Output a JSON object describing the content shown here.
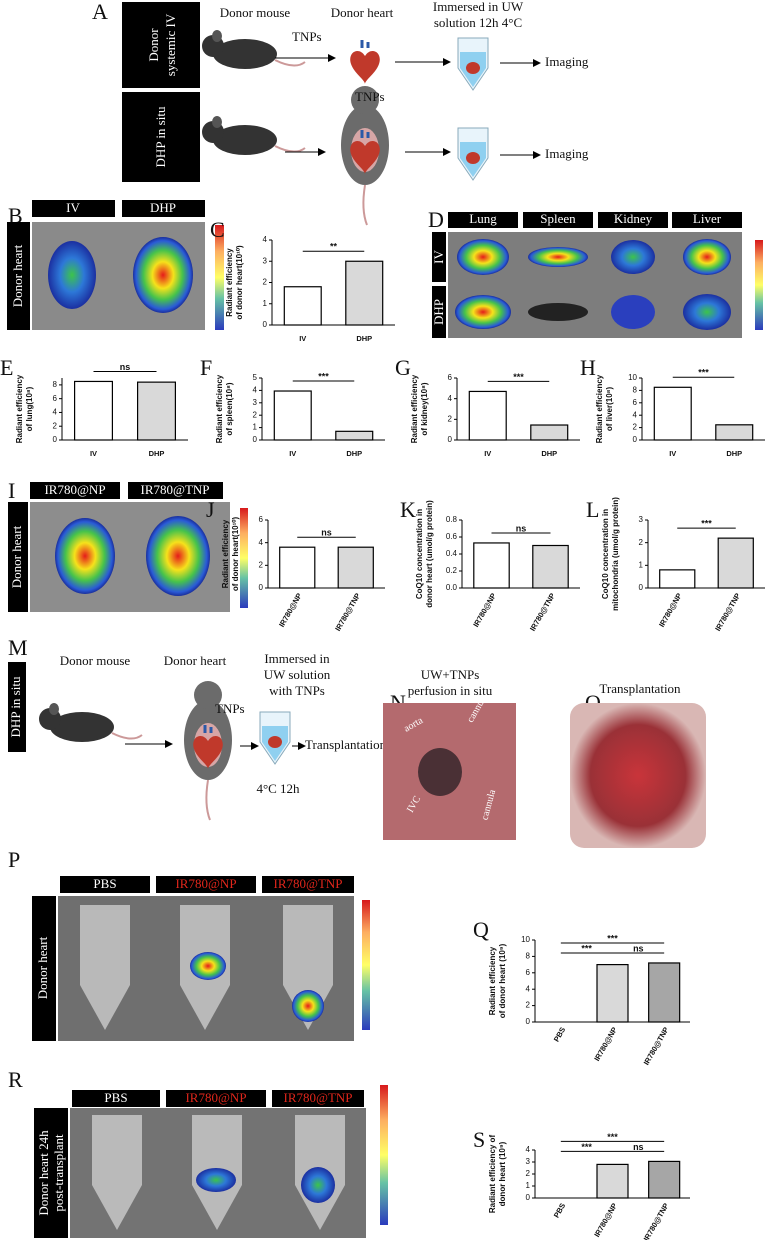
{
  "panel_a": {
    "label": "A",
    "rows": [
      [
        "Donor",
        "systemic IV"
      ],
      "DHP in situ"
    ],
    "donor_mouse": "Donor mouse",
    "donor_heart": "Donor heart",
    "immersed": [
      "Immersed in UW",
      "solution 12h 4°C"
    ],
    "tnps": "TNPs",
    "imaging": "Imaging"
  },
  "panel_b": {
    "label": "B",
    "groups": [
      "IV",
      "DHP"
    ],
    "side": "Donor heart"
  },
  "panel_d": {
    "label": "D",
    "organs": [
      "Lung",
      "Spleen",
      "Kidney",
      "Liver"
    ],
    "rows": [
      "IV",
      "DHP"
    ]
  },
  "panel_i": {
    "label": "I",
    "groups": [
      "IR780@NP",
      "IR780@TNP"
    ],
    "side": "Donor heart"
  },
  "panel_m": {
    "label": "M",
    "side": "DHP in situ",
    "donor_mouse": "Donor mouse",
    "donor_heart": "Donor heart",
    "immersed": [
      "Immersed in",
      "UW solution",
      "with TNPs"
    ],
    "tnps": "TNPs",
    "condition": "4°C  12h",
    "transplantation": "Transplantation"
  },
  "panel_n": {
    "label": "N",
    "title": [
      "UW+TNPs",
      "perfusion in situ"
    ],
    "annotations": [
      "aorta",
      "cannula",
      "IVC",
      "cannula"
    ]
  },
  "panel_o": {
    "label": "O",
    "title": "Transplantation"
  },
  "panel_p": {
    "label": "P",
    "groups": [
      "PBS",
      "IR780@NP",
      "IR780@TNP"
    ],
    "side": "Donor heart"
  },
  "panel_r": {
    "label": "R",
    "groups": [
      "PBS",
      "IR780@NP",
      "IR780@TNP"
    ],
    "side": [
      "Donor heart 24h",
      "post-transplant"
    ]
  },
  "chart_data": [
    {
      "type": "bar",
      "label": "C",
      "ylabel": [
        "Radiant efficiency",
        "of donor heart(10¹⁰)"
      ],
      "categories": [
        "IV",
        "DHP"
      ],
      "values": [
        1.8,
        3.0
      ],
      "colors": [
        "#ffffff",
        "#d9d9d9"
      ],
      "ylim": [
        0,
        4
      ],
      "yticks": [
        0,
        1,
        2,
        3,
        4
      ],
      "annotations": [
        "**"
      ]
    },
    {
      "type": "bar",
      "label": "E",
      "ylabel": [
        "Radiant efficiency",
        "of lung(10⁸)"
      ],
      "categories": [
        "IV",
        "DHP"
      ],
      "values": [
        8.5,
        8.4
      ],
      "colors": [
        "#ffffff",
        "#d9d9d9"
      ],
      "ylim": [
        0,
        9
      ],
      "yticks": [
        0,
        2,
        4,
        6,
        8
      ],
      "annotations": [
        "ns"
      ]
    },
    {
      "type": "bar",
      "label": "F",
      "ylabel": [
        "Radiant efficiency",
        "of spleen(10⁸)"
      ],
      "categories": [
        "IV",
        "DHP"
      ],
      "values": [
        3.95,
        0.7
      ],
      "colors": [
        "#ffffff",
        "#d9d9d9"
      ],
      "ylim": [
        0,
        5
      ],
      "yticks": [
        0,
        1,
        2,
        3,
        4,
        5
      ],
      "annotations": [
        "***"
      ]
    },
    {
      "type": "bar",
      "label": "G",
      "ylabel": [
        "Radiant efficiency",
        "of kidney(10⁸)"
      ],
      "categories": [
        "IV",
        "DHP"
      ],
      "values": [
        4.7,
        1.45
      ],
      "colors": [
        "#ffffff",
        "#d9d9d9"
      ],
      "ylim": [
        0,
        6
      ],
      "yticks": [
        0,
        2,
        4,
        6
      ],
      "annotations": [
        "***"
      ]
    },
    {
      "type": "bar",
      "label": "H",
      "ylabel": [
        "Radiant efficiency",
        "of liver(10⁸)"
      ],
      "categories": [
        "IV",
        "DHP"
      ],
      "values": [
        8.5,
        2.45
      ],
      "colors": [
        "#ffffff",
        "#d9d9d9"
      ],
      "ylim": [
        0,
        10
      ],
      "yticks": [
        0,
        2,
        4,
        6,
        8,
        10
      ],
      "annotations": [
        "***"
      ]
    },
    {
      "type": "bar",
      "label": "J",
      "ylabel": [
        "Radiant efficiency",
        "of donor heart(10¹⁰)"
      ],
      "categories": [
        "IR780@NP",
        "IR780@TNP"
      ],
      "values": [
        3.6,
        3.6
      ],
      "colors": [
        "#ffffff",
        "#d9d9d9"
      ],
      "ylim": [
        0,
        6
      ],
      "yticks": [
        0,
        2,
        4,
        6
      ],
      "annotations": [
        "ns"
      ]
    },
    {
      "type": "bar",
      "label": "K",
      "ylabel": [
        "CoQ10 concentration in",
        "donor heart (umol/g protein)"
      ],
      "categories": [
        "IR780@NP",
        "IR780@TNP"
      ],
      "values": [
        0.53,
        0.5
      ],
      "colors": [
        "#ffffff",
        "#d9d9d9"
      ],
      "ylim": [
        0,
        0.8
      ],
      "yticks": [
        {
          "value": 0,
          "label": "0.0"
        },
        0.2,
        0.4,
        0.6,
        0.8
      ],
      "annotations": [
        "ns"
      ]
    },
    {
      "type": "bar",
      "label": "L",
      "ylabel": [
        "CoQ10 concentration in",
        "mitochondria (umol/g protein)"
      ],
      "categories": [
        "IR780@NP",
        "IR780@TNP"
      ],
      "values": [
        0.8,
        2.2
      ],
      "colors": [
        "#ffffff",
        "#d9d9d9"
      ],
      "ylim": [
        0,
        3
      ],
      "yticks": [
        0,
        1,
        2,
        3
      ],
      "annotations": [
        "***"
      ]
    },
    {
      "type": "bar",
      "label": "Q",
      "ylabel": [
        "Radiant efficiency",
        "of donor heart (10⁹)"
      ],
      "categories": [
        "PBS",
        "IR780@NP",
        "IR780@TNP"
      ],
      "values": [
        0,
        7.0,
        7.2
      ],
      "colors": [
        "#ffffff",
        "#d9d9d9",
        "#a6a6a6"
      ],
      "ylim": [
        0,
        10
      ],
      "yticks": [
        0,
        2,
        4,
        6,
        8,
        10
      ],
      "annotations": [
        "***",
        "***",
        "ns"
      ]
    },
    {
      "type": "bar",
      "label": "S",
      "ylabel": [
        "Radiant efficiency of",
        "donor heart (10⁹)"
      ],
      "categories": [
        "PBS",
        "IR780@NP",
        "IR780@TNP"
      ],
      "values": [
        0,
        2.8,
        3.05
      ],
      "colors": [
        "#ffffff",
        "#d9d9d9",
        "#a6a6a6"
      ],
      "ylim": [
        0,
        4
      ],
      "yticks": [
        0,
        1,
        2,
        3,
        4
      ],
      "annotations": [
        "***",
        "***",
        "ns"
      ]
    }
  ]
}
